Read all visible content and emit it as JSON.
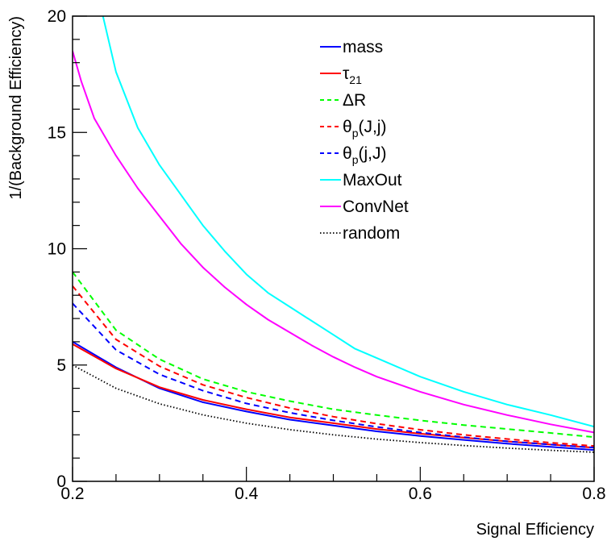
{
  "chart_data": {
    "type": "line",
    "title": "",
    "xlabel": "Signal Efficiency",
    "ylabel": "1/(Background Efficiency)",
    "xlim": [
      0.2,
      0.8
    ],
    "ylim": [
      0,
      20
    ],
    "x_ticks": [
      "0.2",
      "0.4",
      "0.6",
      "0.8"
    ],
    "y_ticks": [
      "0",
      "5",
      "10",
      "15",
      "20"
    ],
    "grid": false,
    "legend_position": "top-right",
    "series": [
      {
        "name": "mass",
        "legend": {
          "main": "mass",
          "sub": ""
        },
        "color": "#0000ff",
        "dash": "solid",
        "x": [
          0.2,
          0.25,
          0.3,
          0.35,
          0.4,
          0.45,
          0.5,
          0.55,
          0.6,
          0.65,
          0.7,
          0.75,
          0.8
        ],
        "y": [
          6.0,
          4.9,
          4.0,
          3.4,
          3.0,
          2.65,
          2.4,
          2.15,
          1.95,
          1.78,
          1.62,
          1.48,
          1.35
        ]
      },
      {
        "name": "τ21",
        "legend": {
          "main": "τ",
          "sub": "21"
        },
        "color": "#ff0000",
        "dash": "solid",
        "x": [
          0.2,
          0.25,
          0.3,
          0.35,
          0.4,
          0.45,
          0.5,
          0.55,
          0.6,
          0.65,
          0.7,
          0.75,
          0.8
        ],
        "y": [
          5.9,
          4.85,
          4.05,
          3.5,
          3.1,
          2.75,
          2.5,
          2.25,
          2.05,
          1.88,
          1.72,
          1.58,
          1.45
        ]
      },
      {
        "name": "ΔR",
        "legend": {
          "main": "ΔR",
          "sub": ""
        },
        "color": "#00ff00",
        "dash": "dashed",
        "x": [
          0.2,
          0.25,
          0.3,
          0.35,
          0.4,
          0.45,
          0.5,
          0.55,
          0.6,
          0.65,
          0.7,
          0.75,
          0.8
        ],
        "y": [
          9.0,
          6.5,
          5.25,
          4.4,
          3.85,
          3.45,
          3.1,
          2.85,
          2.62,
          2.42,
          2.25,
          2.08,
          1.9
        ]
      },
      {
        "name": "θp(J,j)",
        "legend": {
          "main": "θ",
          "sub": "p",
          "tail": "(J,j)"
        },
        "color": "#ff0000",
        "dash": "dashed",
        "x": [
          0.2,
          0.25,
          0.3,
          0.35,
          0.4,
          0.45,
          0.5,
          0.55,
          0.6,
          0.65,
          0.7,
          0.75,
          0.8
        ],
        "y": [
          8.4,
          6.1,
          4.95,
          4.15,
          3.6,
          3.15,
          2.78,
          2.48,
          2.22,
          2.0,
          1.82,
          1.66,
          1.52
        ]
      },
      {
        "name": "θp(j,J)",
        "legend": {
          "main": "θ",
          "sub": "p",
          "tail": "(j,J)"
        },
        "color": "#0000ff",
        "dash": "dashed",
        "x": [
          0.2,
          0.25,
          0.3,
          0.35,
          0.4,
          0.45,
          0.5,
          0.55,
          0.6,
          0.65,
          0.7,
          0.75,
          0.8
        ],
        "y": [
          7.65,
          5.65,
          4.6,
          3.9,
          3.35,
          2.95,
          2.62,
          2.34,
          2.1,
          1.9,
          1.72,
          1.58,
          1.45
        ]
      },
      {
        "name": "MaxOut",
        "legend": {
          "main": "MaxOut",
          "sub": ""
        },
        "color": "#00ffff",
        "dash": "solid",
        "x": [
          0.235,
          0.25,
          0.275,
          0.3,
          0.325,
          0.35,
          0.375,
          0.4,
          0.425,
          0.45,
          0.475,
          0.5,
          0.525,
          0.55,
          0.6,
          0.65,
          0.7,
          0.75,
          0.8
        ],
        "y": [
          20.0,
          17.6,
          15.2,
          13.6,
          12.3,
          11.0,
          9.9,
          8.9,
          8.1,
          7.5,
          6.9,
          6.3,
          5.7,
          5.3,
          4.5,
          3.85,
          3.3,
          2.85,
          2.35
        ]
      },
      {
        "name": "ConvNet",
        "legend": {
          "main": "ConvNet",
          "sub": ""
        },
        "color": "#ff00ff",
        "dash": "solid",
        "x": [
          0.2,
          0.21,
          0.225,
          0.25,
          0.275,
          0.3,
          0.325,
          0.35,
          0.375,
          0.4,
          0.425,
          0.45,
          0.475,
          0.5,
          0.525,
          0.55,
          0.6,
          0.65,
          0.7,
          0.75,
          0.8
        ],
        "y": [
          18.5,
          17.2,
          15.6,
          14.0,
          12.6,
          11.4,
          10.2,
          9.2,
          8.35,
          7.6,
          6.95,
          6.4,
          5.85,
          5.35,
          4.9,
          4.5,
          3.85,
          3.3,
          2.85,
          2.45,
          2.1
        ]
      },
      {
        "name": "random",
        "legend": {
          "main": "random",
          "sub": ""
        },
        "color": "#000000",
        "dash": "dotted",
        "x": [
          0.2,
          0.25,
          0.3,
          0.35,
          0.4,
          0.45,
          0.5,
          0.55,
          0.6,
          0.65,
          0.7,
          0.75,
          0.8
        ],
        "y": [
          5.0,
          4.0,
          3.333,
          2.857,
          2.5,
          2.222,
          2.0,
          1.818,
          1.667,
          1.538,
          1.429,
          1.333,
          1.25
        ]
      }
    ]
  }
}
